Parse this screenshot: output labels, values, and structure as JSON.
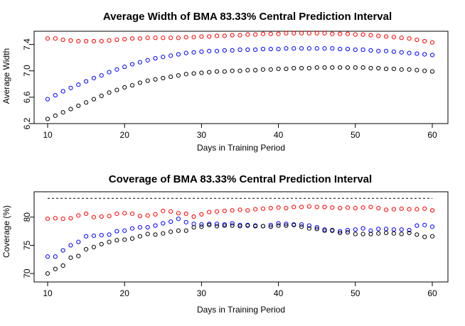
{
  "chart_data": [
    {
      "type": "scatter",
      "title": "Average Width of BMA 83.33% Central Prediction Interval",
      "xlabel": "Days in Training Period",
      "ylabel": "Average Width",
      "xlim": [
        10,
        60
      ],
      "ylim": [
        6.2,
        7.6
      ],
      "x_ticks": [
        10,
        20,
        30,
        40,
        50,
        60
      ],
      "y_ticks": [
        6.2,
        6.6,
        7.0,
        7.4
      ],
      "x_tick_labels": [
        "10",
        "20",
        "30",
        "40",
        "50",
        "60"
      ],
      "y_tick_labels": [
        "6.2",
        "6.6",
        "7.0",
        "7.4"
      ],
      "x": [
        10,
        11,
        12,
        13,
        14,
        15,
        16,
        17,
        18,
        19,
        20,
        21,
        22,
        23,
        24,
        25,
        26,
        27,
        28,
        29,
        30,
        31,
        32,
        33,
        34,
        35,
        36,
        37,
        38,
        39,
        40,
        41,
        42,
        43,
        44,
        45,
        46,
        47,
        48,
        49,
        50,
        51,
        52,
        53,
        54,
        55,
        56,
        57,
        58,
        59,
        60
      ],
      "series": [
        {
          "color": "#ff0000",
          "values": [
            7.49,
            7.49,
            7.47,
            7.46,
            7.45,
            7.45,
            7.45,
            7.45,
            7.46,
            7.47,
            7.48,
            7.49,
            7.49,
            7.5,
            7.5,
            7.5,
            7.5,
            7.5,
            7.51,
            7.51,
            7.52,
            7.52,
            7.53,
            7.53,
            7.54,
            7.54,
            7.55,
            7.55,
            7.56,
            7.56,
            7.56,
            7.57,
            7.57,
            7.57,
            7.57,
            7.57,
            7.57,
            7.56,
            7.56,
            7.56,
            7.55,
            7.55,
            7.54,
            7.53,
            7.52,
            7.51,
            7.5,
            7.49,
            7.47,
            7.45,
            7.43
          ]
        },
        {
          "color": "#0000ff",
          "values": [
            6.57,
            6.63,
            6.69,
            6.74,
            6.79,
            6.84,
            6.89,
            6.93,
            6.98,
            7.02,
            7.06,
            7.1,
            7.13,
            7.16,
            7.19,
            7.21,
            7.23,
            7.25,
            7.27,
            7.28,
            7.29,
            7.3,
            7.3,
            7.31,
            7.31,
            7.32,
            7.32,
            7.32,
            7.33,
            7.33,
            7.33,
            7.34,
            7.34,
            7.34,
            7.34,
            7.34,
            7.34,
            7.34,
            7.33,
            7.33,
            7.32,
            7.32,
            7.31,
            7.3,
            7.3,
            7.29,
            7.28,
            7.27,
            7.26,
            7.25,
            7.24
          ]
        },
        {
          "color": "#000000",
          "values": [
            6.27,
            6.32,
            6.37,
            6.42,
            6.47,
            6.52,
            6.57,
            6.62,
            6.67,
            6.71,
            6.75,
            6.78,
            6.82,
            6.85,
            6.87,
            6.89,
            6.91,
            6.93,
            6.95,
            6.96,
            6.97,
            6.98,
            6.99,
            6.99,
            7.0,
            7.0,
            7.01,
            7.01,
            7.02,
            7.02,
            7.03,
            7.03,
            7.04,
            7.04,
            7.04,
            7.05,
            7.05,
            7.05,
            7.05,
            7.05,
            7.05,
            7.05,
            7.04,
            7.04,
            7.03,
            7.03,
            7.02,
            7.02,
            7.01,
            7.0,
            6.99
          ]
        }
      ]
    },
    {
      "type": "scatter",
      "title": "Coverage of BMA 83.33% Central Prediction Interval",
      "xlabel": "Days in Training Period",
      "ylabel": "Coverage (%)",
      "xlim": [
        10,
        60
      ],
      "ylim": [
        68.5,
        84.5
      ],
      "x_ticks": [
        10,
        20,
        30,
        40,
        50,
        60
      ],
      "y_ticks": [
        70,
        75,
        80
      ],
      "x_tick_labels": [
        "10",
        "20",
        "30",
        "40",
        "50",
        "60"
      ],
      "y_tick_labels": [
        "70",
        "75",
        "80"
      ],
      "reference_line": {
        "y": 83.33,
        "style": "dashed",
        "color": "#000000"
      },
      "x": [
        10,
        11,
        12,
        13,
        14,
        15,
        16,
        17,
        18,
        19,
        20,
        21,
        22,
        23,
        24,
        25,
        26,
        27,
        28,
        29,
        30,
        31,
        32,
        33,
        34,
        35,
        36,
        37,
        38,
        39,
        40,
        41,
        42,
        43,
        44,
        45,
        46,
        47,
        48,
        49,
        50,
        51,
        52,
        53,
        54,
        55,
        56,
        57,
        58,
        59,
        60
      ],
      "series": [
        {
          "color": "#ff0000",
          "values": [
            79.7,
            79.8,
            79.7,
            79.8,
            80.3,
            80.6,
            80.0,
            80.1,
            80.2,
            80.6,
            80.7,
            80.6,
            80.2,
            80.3,
            80.5,
            81.1,
            81.0,
            80.7,
            80.6,
            80.1,
            80.5,
            80.9,
            81.0,
            81.1,
            81.2,
            81.3,
            81.2,
            81.4,
            81.5,
            81.6,
            81.7,
            81.6,
            81.8,
            81.8,
            81.9,
            81.8,
            81.8,
            81.7,
            81.6,
            81.7,
            81.6,
            81.7,
            81.8,
            81.6,
            81.3,
            81.4,
            81.5,
            81.4,
            81.4,
            81.5,
            81.2
          ]
        },
        {
          "color": "#0000ff",
          "values": [
            73.0,
            73.0,
            74.1,
            75.0,
            75.6,
            76.6,
            76.7,
            76.8,
            76.9,
            77.5,
            77.6,
            78.0,
            78.2,
            78.2,
            78.5,
            78.9,
            79.2,
            79.7,
            79.1,
            78.8,
            78.7,
            78.8,
            78.8,
            78.7,
            78.9,
            78.6,
            78.6,
            78.5,
            78.4,
            78.6,
            78.9,
            78.8,
            78.7,
            78.7,
            78.5,
            78.2,
            77.8,
            77.7,
            77.5,
            77.7,
            77.8,
            78.0,
            77.6,
            77.9,
            77.9,
            77.8,
            77.8,
            77.7,
            78.5,
            78.6,
            78.3
          ]
        },
        {
          "color": "#000000",
          "values": [
            70.0,
            70.8,
            71.4,
            72.8,
            73.1,
            74.3,
            74.7,
            75.2,
            75.6,
            75.9,
            76.0,
            76.2,
            76.6,
            77.0,
            76.9,
            77.1,
            77.4,
            77.6,
            77.6,
            78.2,
            78.3,
            78.6,
            78.4,
            78.5,
            78.5,
            78.4,
            78.5,
            78.4,
            78.4,
            78.3,
            78.5,
            78.5,
            78.6,
            78.3,
            78.0,
            77.9,
            77.6,
            77.6,
            77.2,
            77.3,
            77.0,
            77.0,
            77.0,
            77.1,
            77.2,
            77.1,
            77.0,
            77.2,
            76.9,
            76.5,
            76.6
          ]
        }
      ]
    }
  ]
}
